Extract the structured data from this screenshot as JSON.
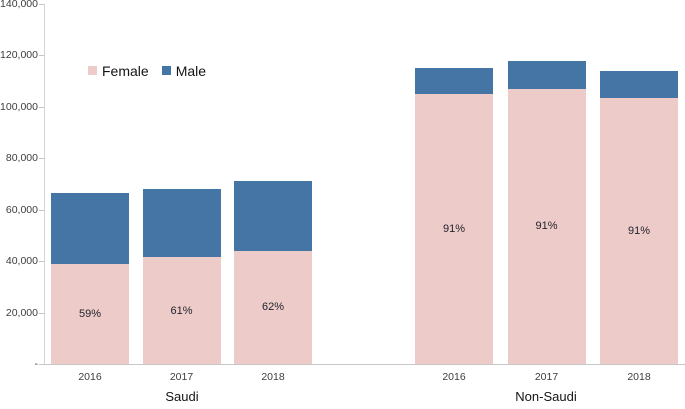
{
  "colors": {
    "female": "#edcbc8",
    "male": "#4575a5",
    "axis": "#c6c6c6",
    "text": "#3d3d3d"
  },
  "chart_data": {
    "type": "bar",
    "variant": "stacked",
    "title": "",
    "xlabel": "",
    "ylabel": "",
    "ylim": [
      0,
      140000
    ],
    "ytick_step": 20000,
    "ytick_labels": [
      "140,000",
      "120,000",
      "100,000",
      "80,000",
      "60,000",
      "40,000",
      "20,000",
      "-"
    ],
    "grid": false,
    "legend_position": "top-left-inside",
    "legend": [
      {
        "name": "Female",
        "color": "#edcbc8"
      },
      {
        "name": "Male",
        "color": "#4575a5"
      }
    ],
    "groups": [
      {
        "label": "Saudi",
        "bars": [
          {
            "year": "2016",
            "female": 39000,
            "male": 27500,
            "total": 66500,
            "female_pct_label": "59%"
          },
          {
            "year": "2017",
            "female": 41500,
            "male": 26500,
            "total": 68000,
            "female_pct_label": "61%"
          },
          {
            "year": "2018",
            "female": 44000,
            "male": 27000,
            "total": 71000,
            "female_pct_label": "62%"
          }
        ]
      },
      {
        "label": "Non-Saudi",
        "bars": [
          {
            "year": "2016",
            "female": 105000,
            "male": 10000,
            "total": 115000,
            "female_pct_label": "91%"
          },
          {
            "year": "2017",
            "female": 107000,
            "male": 11000,
            "total": 118000,
            "female_pct_label": "91%"
          },
          {
            "year": "2018",
            "female": 103500,
            "male": 10500,
            "total": 114000,
            "female_pct_label": "91%"
          }
        ]
      }
    ]
  }
}
